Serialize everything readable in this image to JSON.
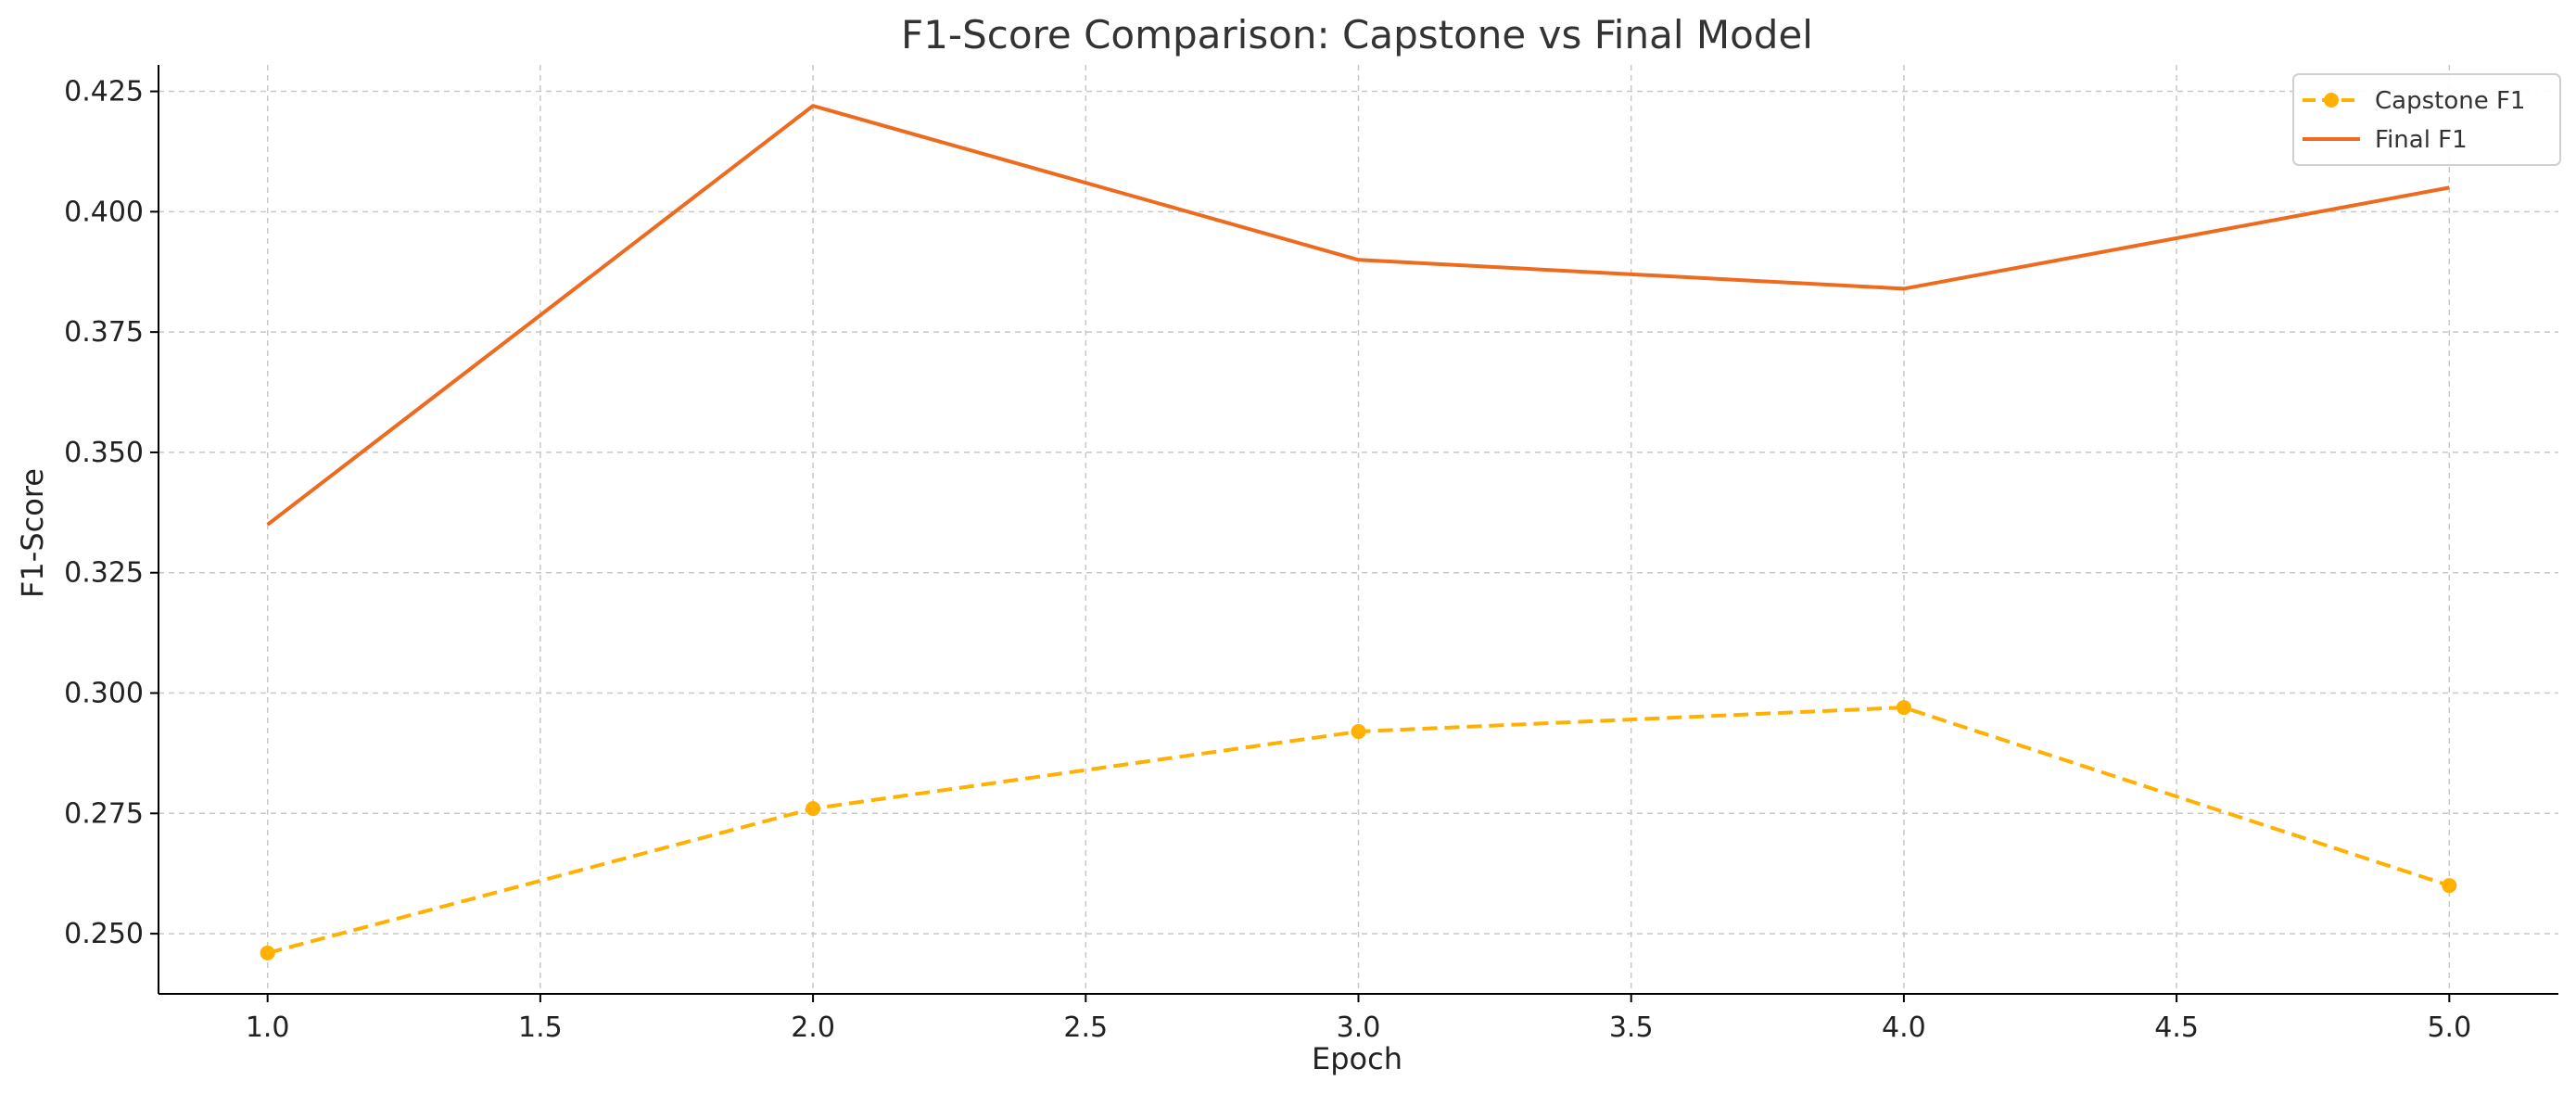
{
  "chart_data": {
    "type": "line",
    "title": "F1-Score Comparison: Capstone vs Final Model",
    "xlabel": "Epoch",
    "ylabel": "F1-Score",
    "x": [
      1,
      2,
      3,
      4,
      5
    ],
    "xlim": [
      0.8,
      5.2
    ],
    "ylim": [
      0.2375,
      0.4305
    ],
    "xticks": [
      1.0,
      1.5,
      2.0,
      2.5,
      3.0,
      3.5,
      4.0,
      4.5,
      5.0
    ],
    "xtick_labels": [
      "1.0",
      "1.5",
      "2.0",
      "2.5",
      "3.0",
      "3.5",
      "4.0",
      "4.5",
      "5.0"
    ],
    "yticks": [
      0.25,
      0.275,
      0.3,
      0.325,
      0.35,
      0.375,
      0.4,
      0.425
    ],
    "ytick_labels": [
      "0.250",
      "0.275",
      "0.300",
      "0.325",
      "0.350",
      "0.375",
      "0.400",
      "0.425"
    ],
    "grid": true,
    "legend_position": "top-right",
    "series": [
      {
        "name": "Capstone F1",
        "values": [
          0.246,
          0.276,
          0.292,
          0.297,
          0.26
        ],
        "color": "#FFB000",
        "line_style": "dashed",
        "marker": "circle"
      },
      {
        "name": "Final F1",
        "values": [
          0.335,
          0.422,
          0.39,
          0.384,
          0.405
        ],
        "color": "#EE6A1E",
        "line_style": "solid",
        "marker": "none"
      }
    ]
  }
}
